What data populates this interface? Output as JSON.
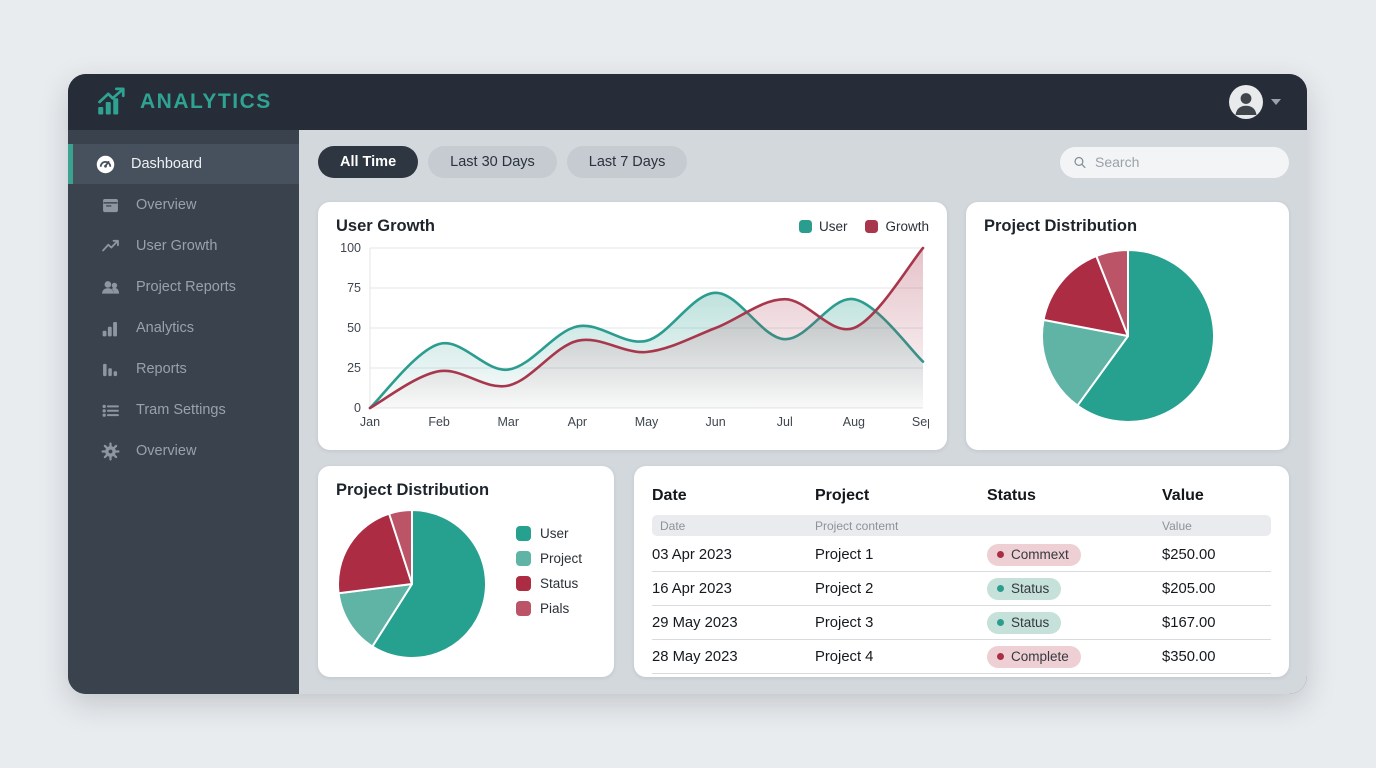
{
  "brand": {
    "name": "ANALYTICS",
    "accent": "#2fa392"
  },
  "sidebar": {
    "items": [
      {
        "label": "Dashboard",
        "icon": "dashboard-gauge-icon",
        "active": true
      },
      {
        "label": "Overview",
        "icon": "window-icon",
        "active": false
      },
      {
        "label": "User Growth",
        "icon": "trend-up-icon",
        "active": false
      },
      {
        "label": "Project Reports",
        "icon": "people-icon",
        "active": false
      },
      {
        "label": "Analytics",
        "icon": "bar-chart-icon",
        "active": false
      },
      {
        "label": "Reports",
        "icon": "column-chart-icon",
        "active": false
      },
      {
        "label": "Tram Settings",
        "icon": "list-icon",
        "active": false
      },
      {
        "label": "Overview",
        "icon": "gear-icon",
        "active": false
      }
    ]
  },
  "filters": [
    {
      "label": "All Time",
      "active": true
    },
    {
      "label": "Last 30 Days",
      "active": false
    },
    {
      "label": "Last 7 Days",
      "active": false
    }
  ],
  "search": {
    "placeholder": "Search"
  },
  "cards": {
    "user_growth": {
      "title": "User Growth"
    },
    "pie_top": {
      "title": "Project Distribution"
    },
    "pie_bottom": {
      "title": "Project Distribution"
    }
  },
  "chart_data": [
    {
      "type": "line",
      "title": "User Growth",
      "x": [
        "Jan",
        "Feb",
        "Mar",
        "Apr",
        "May",
        "Jun",
        "Jul",
        "Aug",
        "Sep"
      ],
      "series": [
        {
          "name": "User",
          "color": "#2a9d8f",
          "values": [
            0,
            40,
            24,
            51,
            42,
            72,
            43,
            68,
            29
          ]
        },
        {
          "name": "Growth",
          "color": "#a8374d",
          "values": [
            0,
            23,
            14,
            42,
            35,
            50,
            68,
            50,
            100
          ]
        }
      ],
      "ylim": [
        0,
        100
      ],
      "yticks": [
        0,
        25,
        50,
        75,
        100
      ],
      "grid": true,
      "legend_position": "top-right",
      "fill": "gradient-area"
    },
    {
      "type": "pie",
      "title": "Project Distribution",
      "labels": [
        "User",
        "Project",
        "Status",
        "Pials"
      ],
      "values": [
        60,
        18,
        16,
        6
      ],
      "colors": [
        "#26a08f",
        "#5fb4a6",
        "#ab2c43",
        "#bc5468"
      ],
      "legend_position": "none",
      "start_angle_deg": -90,
      "direction": "clockwise"
    },
    {
      "type": "pie",
      "title": "Project Distribution",
      "labels": [
        "User",
        "Project",
        "Status",
        "Pials"
      ],
      "values": [
        59,
        14,
        22,
        5
      ],
      "colors": [
        "#26a08f",
        "#5fb4a6",
        "#ab2c43",
        "#bc5468"
      ],
      "legend_position": "right",
      "start_angle_deg": -90,
      "direction": "clockwise"
    }
  ],
  "table": {
    "headers": [
      "Date",
      "Project",
      "Status",
      "Value"
    ],
    "subheaders": [
      "Date",
      "Project contemt",
      "",
      "Value"
    ],
    "rows": [
      {
        "date": "03 Apr 2023",
        "project": "Project 1",
        "status": "Commext",
        "status_type": "red",
        "value": "$250.00"
      },
      {
        "date": "16 Apr 2023",
        "project": "Project 2",
        "status": "Status",
        "status_type": "teal",
        "value": "$205.00"
      },
      {
        "date": "29 May 2023",
        "project": "Project 3",
        "status": "Status",
        "status_type": "teal",
        "value": "$167.00"
      },
      {
        "date": "28 May 2023",
        "project": "Project 4",
        "status": "Complete",
        "status_type": "red",
        "value": "$350.00"
      }
    ]
  },
  "colors": {
    "header_bg": "#262d38",
    "sidebar_bg": "#3a424e",
    "sidebar_active_bg": "#47505d",
    "sidebar_active_border": "#3ba291",
    "content_bg": "#d3d8dd",
    "page_bg": "#e9ecef",
    "pill_active_bg": "#2e3642",
    "badge_red_bg": "#eed0d4",
    "badge_red_dot": "#a82e44",
    "badge_teal_bg": "#c5e1da",
    "badge_teal_dot": "#2a9d8f"
  }
}
